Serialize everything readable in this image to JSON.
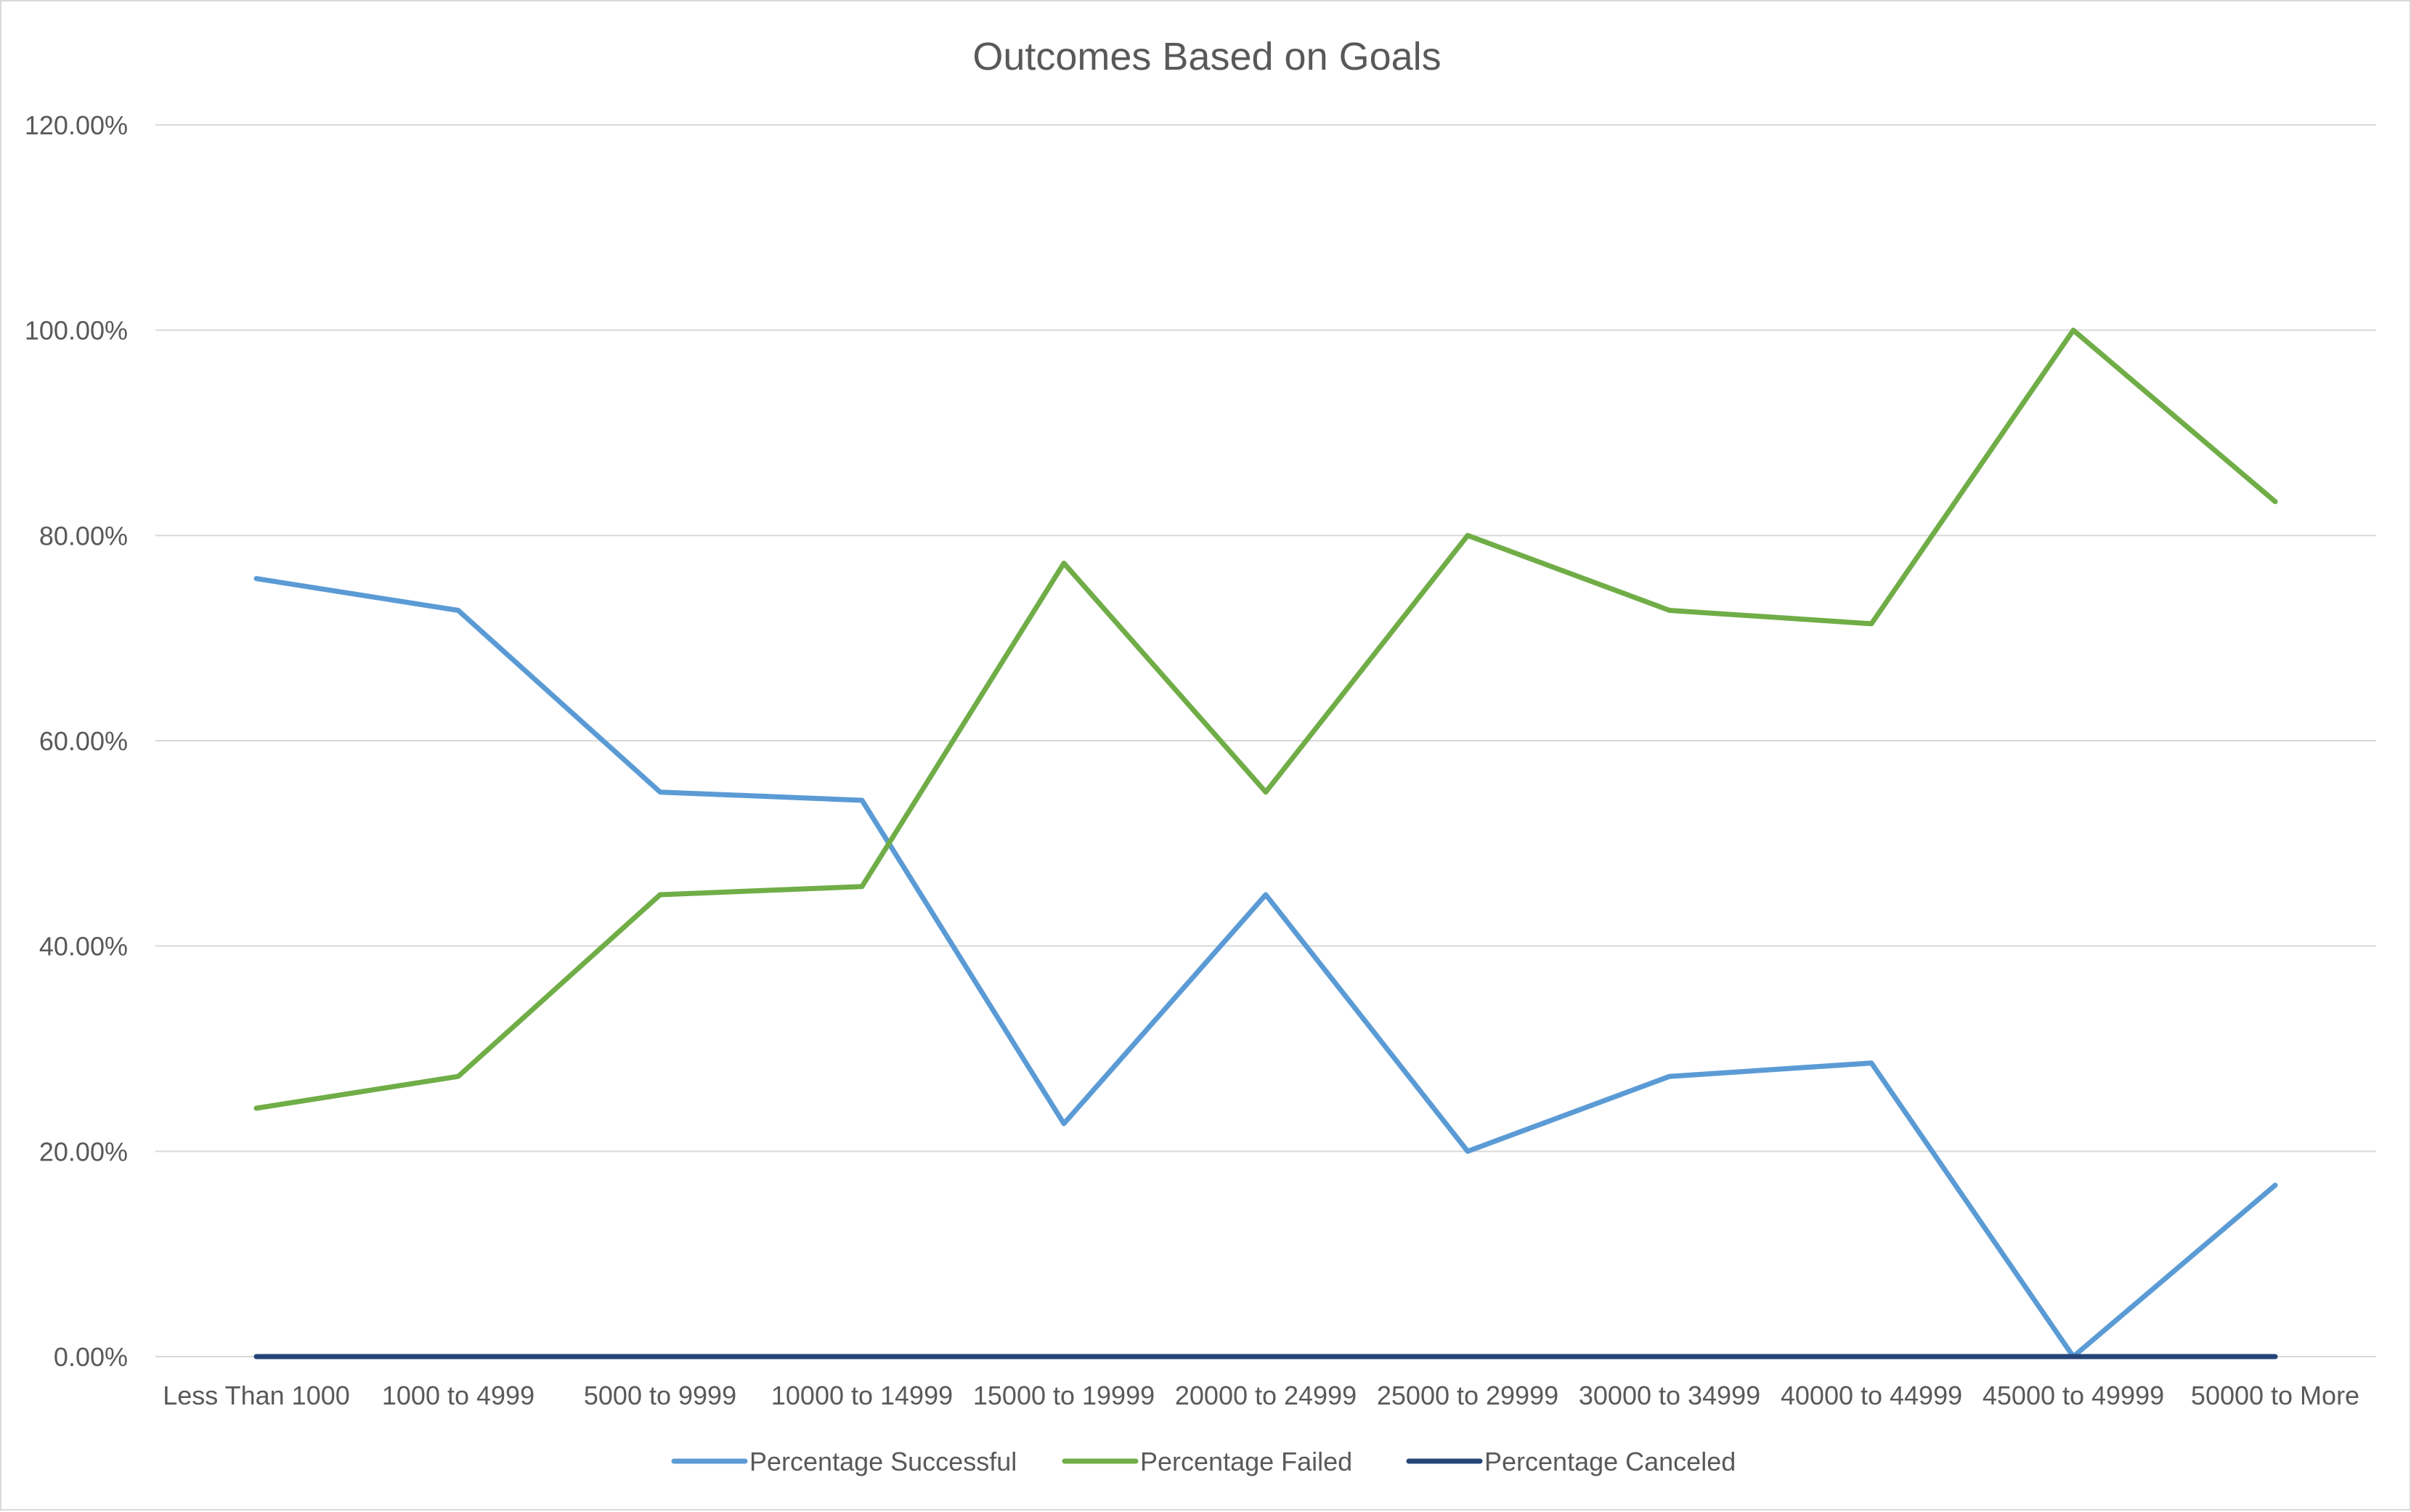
{
  "chart_data": {
    "type": "line",
    "title": "Outcomes Based on Goals",
    "xlabel": "",
    "ylabel": "",
    "categories": [
      "Less Than 1000",
      "1000 to 4999",
      "5000 to 9999",
      "10000 to 14999",
      "15000 to 19999",
      "20000 to 24999",
      "25000 to 29999",
      "30000 to 34999",
      "40000 to 44999",
      "45000 to 49999",
      "50000 to More"
    ],
    "ylim": [
      0,
      1.2
    ],
    "yticks": [
      0,
      0.2,
      0.4,
      0.6,
      0.8,
      1.0,
      1.2
    ],
    "ytick_labels": [
      "0.00%",
      "20.00%",
      "40.00%",
      "60.00%",
      "80.00%",
      "100.00%",
      "120.00%"
    ],
    "grid": "horizontal",
    "legend_position": "bottom",
    "series": [
      {
        "name": "Percentage Successful",
        "color": "#5b9bd5",
        "values": [
          0.758,
          0.727,
          0.55,
          0.542,
          0.227,
          0.45,
          0.2,
          0.273,
          0.286,
          0.0,
          0.167
        ]
      },
      {
        "name": "Percentage Failed",
        "color": "#70ad47",
        "values": [
          0.242,
          0.273,
          0.45,
          0.458,
          0.773,
          0.55,
          0.8,
          0.727,
          0.714,
          1.0,
          0.833
        ]
      },
      {
        "name": "Percentage Canceled",
        "color": "#264478",
        "values": [
          0,
          0,
          0,
          0,
          0,
          0,
          0,
          0,
          0,
          0,
          0
        ]
      }
    ]
  }
}
